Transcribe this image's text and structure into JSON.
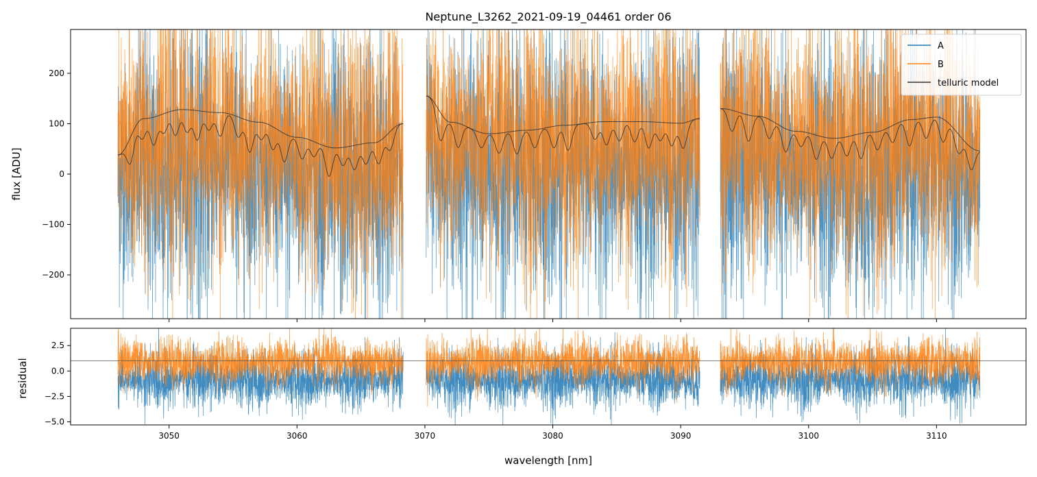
{
  "chart_data": [
    {
      "type": "line",
      "title": "Neptune_L3262_2021-09-19_04461  order 06",
      "xlabel": "",
      "ylabel": "flux [ADU]",
      "xlim": [
        3042.3,
        3117.0
      ],
      "ylim": [
        -287,
        287
      ],
      "yticks": [
        -200,
        -100,
        0,
        100,
        200
      ],
      "yticklabels": [
        "−200",
        "−100",
        "0",
        "100",
        "200"
      ],
      "xticks": [
        3050,
        3060,
        3070,
        3080,
        3090,
        3100,
        3110
      ],
      "wavelength_segments": [
        [
          3046.0,
          3068.3
        ],
        [
          3070.1,
          3091.5
        ],
        [
          3093.1,
          3113.4
        ]
      ],
      "series": [
        {
          "name": "A",
          "color": "#1f77b4",
          "description": "noisy spectrum, approx range -287 to 287"
        },
        {
          "name": "B",
          "color": "#ff7f0e",
          "description": "noisy spectrum, approx range -287 to 287"
        },
        {
          "name": "telluric model",
          "color": "#333333",
          "continuum_x": [
            3046,
            3048,
            3051,
            3054,
            3057,
            3060,
            3063,
            3066,
            3068.3,
            3070.1,
            3072,
            3075,
            3078,
            3081,
            3084,
            3087,
            3090,
            3091.5,
            3093.1,
            3096,
            3099,
            3102,
            3105,
            3108,
            3110,
            3113.4
          ],
          "continuum_y": [
            38,
            110,
            128,
            122,
            103,
            73,
            52,
            62,
            100,
            155,
            103,
            80,
            87,
            97,
            104,
            104,
            101,
            110,
            130,
            115,
            85,
            71,
            83,
            108,
            113,
            46
          ],
          "absorption_x": [
            3047.0,
            3047.9,
            3048.8,
            3049.6,
            3050.5,
            3051.4,
            3052.2,
            3053.1,
            3054.0,
            3055.4,
            3056.3,
            3057.2,
            3058.1,
            3059.0,
            3060.4,
            3061.3,
            3062.5,
            3063.6,
            3064.5,
            3065.4,
            3066.4,
            3067.3,
            3071.2,
            3072.6,
            3074.4,
            3075.8,
            3077.2,
            3078.6,
            3080.1,
            3081.2,
            3083.3,
            3084.2,
            3085.2,
            3086.4,
            3087.5,
            3088.4,
            3089.3,
            3090.2,
            3094.0,
            3095.3,
            3096.9,
            3098.2,
            3099.4,
            3100.6,
            3101.8,
            3103.0,
            3104.1,
            3105.4,
            3106.6,
            3107.9,
            3109.2,
            3110.5,
            3111.7,
            3112.7
          ],
          "absorption_depth": [
            52,
            40,
            55,
            38,
            50,
            44,
            58,
            36,
            47,
            40,
            62,
            34,
            45,
            56,
            42,
            30,
            58,
            36,
            48,
            41,
            44,
            37,
            55,
            48,
            30,
            40,
            46,
            36,
            43,
            50,
            34,
            46,
            38,
            40,
            52,
            36,
            45,
            50,
            42,
            52,
            38,
            46,
            30,
            48,
            40,
            38,
            50,
            36,
            34,
            52,
            40,
            46,
            38,
            44
          ]
        }
      ],
      "legend": [
        "A",
        "B",
        "telluric model"
      ],
      "legend_position": "top-right"
    },
    {
      "type": "line",
      "title": "",
      "xlabel": "wavelength [nm]",
      "ylabel": "residual",
      "xlim": [
        3042.3,
        3117.0
      ],
      "ylim": [
        -5.3,
        4.2
      ],
      "yticks": [
        -5.0,
        -2.5,
        0.0,
        2.5
      ],
      "yticklabels": [
        "−5.0",
        "−2.5",
        "0.0",
        "2.5"
      ],
      "xticks": [
        3050,
        3060,
        3070,
        3080,
        3090,
        3100,
        3110
      ],
      "xticklabels": [
        "3050",
        "3060",
        "3070",
        "3080",
        "3090",
        "3100",
        "3110"
      ],
      "reference_line_y": 1.0,
      "series": [
        {
          "name": "A",
          "color": "#1f77b4",
          "description": "residual, mostly -5 to 1.5"
        },
        {
          "name": "B",
          "color": "#ff7f0e",
          "description": "residual, mostly -1 to 4"
        }
      ]
    }
  ]
}
